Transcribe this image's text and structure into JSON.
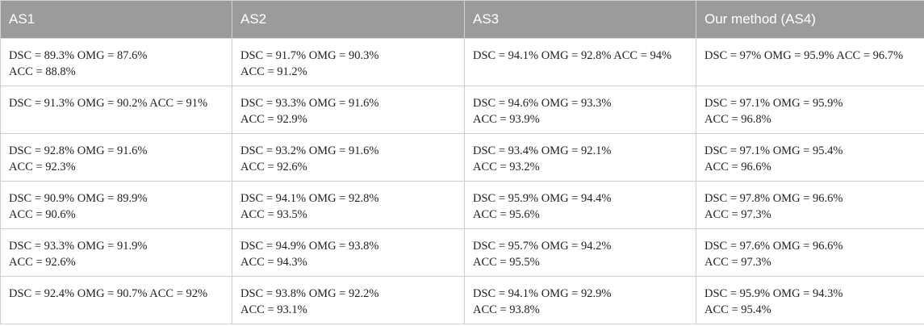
{
  "table": {
    "headers": [
      "AS1",
      "AS2",
      "AS3",
      "Our method (AS4)"
    ],
    "rows": [
      [
        [
          "DSC = 89.3% OMG = 87.6%",
          "ACC = 88.8%"
        ],
        [
          "DSC = 91.7% OMG = 90.3%",
          "ACC = 91.2%"
        ],
        [
          "DSC = 94.1% OMG = 92.8% ACC = 94%",
          ""
        ],
        [
          "DSC = 97% OMG = 95.9% ACC = 96.7%",
          ""
        ]
      ],
      [
        [
          "DSC = 91.3% OMG = 90.2% ACC = 91%",
          ""
        ],
        [
          "DSC = 93.3% OMG = 91.6%",
          "ACC = 92.9%"
        ],
        [
          "DSC = 94.6% OMG = 93.3%",
          "ACC = 93.9%"
        ],
        [
          "DSC = 97.1% OMG = 95.9%",
          "ACC = 96.8%"
        ]
      ],
      [
        [
          "DSC = 92.8% OMG = 91.6%",
          "ACC = 92.3%"
        ],
        [
          "DSC = 93.2% OMG = 91.6%",
          "ACC = 92.6%"
        ],
        [
          "DSC = 93.4% OMG = 92.1%",
          "ACC = 93.2%"
        ],
        [
          "DSC = 97.1% OMG = 95.4%",
          "ACC = 96.6%"
        ]
      ],
      [
        [
          "DSC = 90.9% OMG = 89.9%",
          "ACC = 90.6%"
        ],
        [
          "DSC = 94.1% OMG = 92.8%",
          "ACC = 93.5%"
        ],
        [
          "DSC = 95.9% OMG = 94.4%",
          "ACC = 95.6%"
        ],
        [
          "DSC = 97.8% OMG = 96.6%",
          "ACC = 97.3%"
        ]
      ],
      [
        [
          "DSC = 93.3% OMG = 91.9%",
          "ACC = 92.6%"
        ],
        [
          "DSC = 94.9% OMG = 93.8%",
          "ACC = 94.3%"
        ],
        [
          "DSC = 95.7% OMG = 94.2%",
          "ACC = 95.5%"
        ],
        [
          "DSC = 97.6% OMG = 96.6%",
          "ACC = 97.3%"
        ]
      ],
      [
        [
          "DSC = 92.4% OMG = 90.7% ACC = 92%",
          ""
        ],
        [
          "DSC = 93.8% OMG = 92.2%",
          "ACC = 93.1%"
        ],
        [
          "DSC = 94.1% OMG = 92.9%",
          "ACC = 93.8%"
        ],
        [
          "DSC = 95.9% OMG = 94.3%",
          "ACC = 95.4%"
        ]
      ]
    ]
  }
}
